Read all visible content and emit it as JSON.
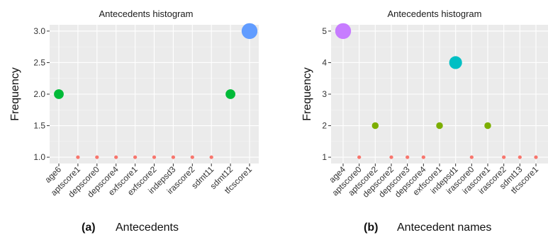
{
  "chart_data": [
    {
      "type": "scatter",
      "title": "Antecedents histogram",
      "xlabel": "",
      "ylabel": "Frequency",
      "categories": [
        "age6",
        "aptscore1",
        "depscore0",
        "depscore4",
        "exfscore1",
        "exfscore2",
        "indepsd3",
        "irascore2",
        "sdmt11",
        "sdmt12",
        "tfcscore1"
      ],
      "values": [
        2.0,
        1.0,
        1.0,
        1.0,
        1.0,
        1.0,
        1.0,
        1.0,
        1.0,
        2.0,
        3.0
      ],
      "y_ticks": [
        "1.0",
        "1.5",
        "2.0",
        "2.5",
        "3.0"
      ],
      "ylim": [
        0.9,
        3.1
      ],
      "grid": true,
      "colors": {
        "1": "#f8766d",
        "2": "#00ba38",
        "3": "#619cff"
      },
      "caption_label": "(a)",
      "caption_text": "Antecedents"
    },
    {
      "type": "scatter",
      "title": "Antecedents histogram",
      "xlabel": "",
      "ylabel": "Frequency",
      "categories": [
        "age4",
        "aptscore0",
        "aptscore2",
        "depscore2",
        "depscore3",
        "depscore4",
        "exfscore1",
        "indepsd1",
        "irascore0",
        "irascore1",
        "irascore2",
        "sdmt13",
        "tfcscore1"
      ],
      "values": [
        5,
        1,
        2,
        1,
        1,
        1,
        2,
        4,
        1,
        2,
        1,
        1,
        1
      ],
      "y_ticks": [
        "1",
        "2",
        "3",
        "4",
        "5"
      ],
      "ylim": [
        0.8,
        5.2
      ],
      "grid": true,
      "colors": {
        "1": "#f8766d",
        "2": "#7cae00",
        "4": "#00bfc4",
        "5": "#c77cff"
      },
      "caption_label": "(b)",
      "caption_text": "Antecedent names"
    }
  ]
}
